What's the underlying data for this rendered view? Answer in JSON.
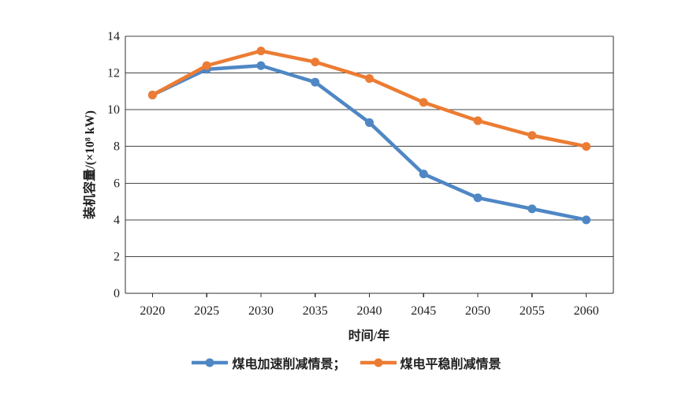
{
  "chart_data": {
    "type": "line",
    "x": [
      2020,
      2025,
      2030,
      2035,
      2040,
      2045,
      2050,
      2055,
      2060
    ],
    "series": [
      {
        "name": "煤电加速削减情景",
        "legend_label": "煤电加速削减情景；",
        "color": "#4f87c5",
        "marker": "circle",
        "values": [
          10.8,
          12.2,
          12.4,
          11.5,
          9.3,
          6.5,
          5.2,
          4.6,
          4.0
        ]
      },
      {
        "name": "煤电平稳削减情景",
        "legend_label": "煤电平稳削减情景",
        "color": "#ec7c33",
        "marker": "circle",
        "values": [
          10.8,
          12.4,
          13.2,
          12.6,
          11.7,
          10.4,
          9.4,
          8.6,
          8.0
        ]
      }
    ],
    "xlabel": "时间/年",
    "ylabel": "装机容量/(×10⁸ kW)",
    "ylim": [
      0,
      14
    ],
    "yticks": [
      0,
      2,
      4,
      6,
      8,
      10,
      12,
      14
    ],
    "grid": "horizontal",
    "plot_border": true,
    "legend_position": "bottom"
  },
  "colors": {
    "background": "#ffffff",
    "axis": "#2f2f2f",
    "grid": "#454545",
    "text": "#1f1f1f"
  }
}
